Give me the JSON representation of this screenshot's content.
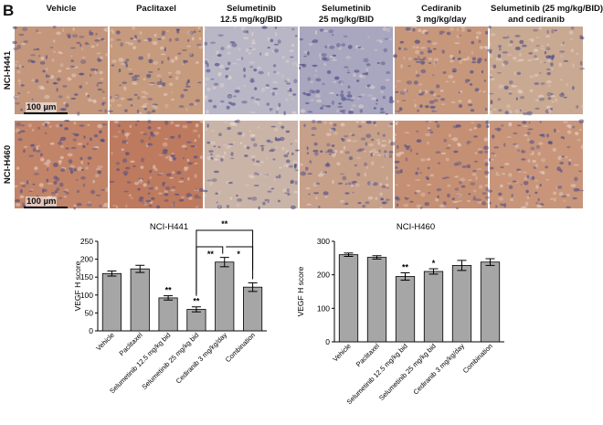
{
  "panel_label": "B",
  "micrograph_columns": [
    "Vehicle",
    "Paclitaxel",
    "Selumetinib\n12.5 mg/kg/BID",
    "Selumetinib\n25 mg/kg/BID",
    "Cediranib\n3 mg/kg/day",
    "Selumetinib (25 mg/kg/BID)\nand cediranib"
  ],
  "micrograph_rows": [
    "NCI-H441",
    "NCI-H460"
  ],
  "tile_colors": {
    "NCI-H441": [
      "#c4967b",
      "#c69a7d",
      "#b9b6c6",
      "#a9a6bf",
      "#c7977c",
      "#c9a992"
    ],
    "NCI-H460": [
      "#c28468",
      "#bd7a5e",
      "#c9b4a7",
      "#c7a08a",
      "#c58f74",
      "#c8957a"
    ]
  },
  "scale_bar_label": "100 µm",
  "chart_data": [
    {
      "type": "bar",
      "title": "NCI-H441",
      "ylabel": "VEGF H score",
      "ylim": [
        0,
        250
      ],
      "yticks": [
        0,
        50,
        100,
        150,
        200,
        250
      ],
      "categories": [
        "Vehicle",
        "Paclitaxel",
        "Selumetinib 12.5 mg/kg bid",
        "Selumetinib 25 mg/kg bid",
        "Cediranib 3 mg/kg/day",
        "Combination"
      ],
      "values": [
        160,
        173,
        92,
        60,
        192,
        122
      ],
      "errors": [
        7,
        10,
        6,
        7,
        13,
        12
      ],
      "annotations": [
        "",
        "",
        "**",
        "**",
        "",
        ""
      ],
      "brackets": [
        {
          "from": 3,
          "to": 4,
          "label": "**"
        },
        {
          "from": 4,
          "to": 5,
          "label": "*"
        },
        {
          "from": 3,
          "to": 5,
          "label": "**"
        }
      ],
      "bar_color": "#a6a6a6"
    },
    {
      "type": "bar",
      "title": "NCI-H460",
      "ylabel": "VEGF H score",
      "ylim": [
        0,
        300
      ],
      "yticks": [
        0,
        100,
        200,
        300
      ],
      "categories": [
        "Vehicle",
        "Paclitaxel",
        "Selumetinib 12.5 mg/kg bid",
        "Selumetinib 25 mg/kg bid",
        "Cediranib 3 mg/kg/day",
        "Combination"
      ],
      "values": [
        260,
        252,
        195,
        210,
        228,
        238
      ],
      "errors": [
        5,
        5,
        11,
        8,
        15,
        10
      ],
      "annotations": [
        "",
        "",
        "**",
        "*",
        "",
        ""
      ],
      "brackets": [],
      "bar_color": "#a6a6a6"
    }
  ]
}
